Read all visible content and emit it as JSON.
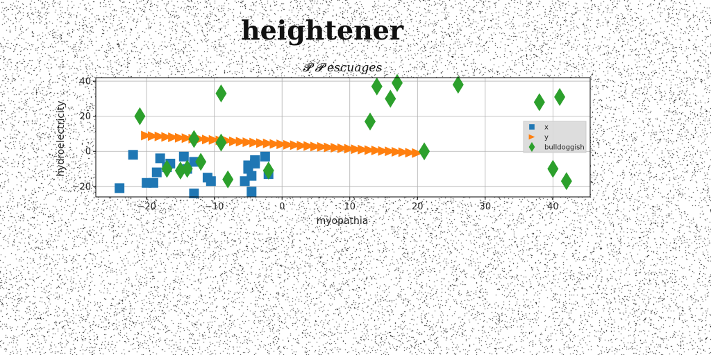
{
  "page_title": "heightener",
  "chart_data": {
    "type": "scatter",
    "title": "𝓟 𝓟 escuages",
    "xlabel": "myopathia",
    "ylabel": "hydroelectricity",
    "xlim": [
      -27.5,
      45.5
    ],
    "ylim": [
      -26,
      42
    ],
    "xticks": [
      -20,
      -10,
      0,
      10,
      20,
      30,
      40
    ],
    "yticks": [
      -20,
      0,
      20,
      40
    ],
    "grid": true,
    "legend_position": "right",
    "series": [
      {
        "name": "x",
        "marker": "square",
        "color": "#1f77b4",
        "points": [
          [
            -24,
            -21
          ],
          [
            -22,
            -2
          ],
          [
            -20,
            -18
          ],
          [
            -19,
            -18
          ],
          [
            -18.5,
            -12
          ],
          [
            -18,
            -4
          ],
          [
            -17,
            -9
          ],
          [
            -16.5,
            -7
          ],
          [
            -14.5,
            -3
          ],
          [
            -14,
            -10
          ],
          [
            -13,
            -24
          ],
          [
            -13,
            -6
          ],
          [
            -11,
            -15
          ],
          [
            -10.5,
            -17
          ],
          [
            -5.5,
            -17
          ],
          [
            -5,
            -10
          ],
          [
            -5,
            -8
          ],
          [
            -4.5,
            -14
          ],
          [
            -4.5,
            -23
          ],
          [
            -4,
            -7
          ],
          [
            -4,
            -5
          ],
          [
            -2.5,
            -3
          ],
          [
            -2,
            -13
          ]
        ]
      },
      {
        "name": "y",
        "marker": "triangle-right",
        "color": "#ff7f0e",
        "points": [
          [
            -20,
            9.0
          ],
          [
            -19,
            8.7
          ],
          [
            -18,
            8.5
          ],
          [
            -17,
            8.2
          ],
          [
            -16,
            8.0
          ],
          [
            -15,
            7.7
          ],
          [
            -14,
            7.5
          ],
          [
            -13,
            7.2
          ],
          [
            -12,
            7.0
          ],
          [
            -11,
            6.7
          ],
          [
            -10,
            6.5
          ],
          [
            -9,
            6.2
          ],
          [
            -8,
            6.0
          ],
          [
            -7,
            5.7
          ],
          [
            -6,
            5.5
          ],
          [
            -5,
            5.2
          ],
          [
            -4,
            5.0
          ],
          [
            -3,
            4.7
          ],
          [
            -2,
            4.5
          ],
          [
            -1,
            4.2
          ],
          [
            0,
            4.0
          ],
          [
            1,
            3.7
          ],
          [
            2,
            3.5
          ],
          [
            3,
            3.2
          ],
          [
            4,
            3.0
          ],
          [
            5,
            2.7
          ],
          [
            6,
            2.5
          ],
          [
            7,
            2.2
          ],
          [
            8,
            2.0
          ],
          [
            9,
            1.7
          ],
          [
            10,
            1.5
          ],
          [
            11,
            1.2
          ],
          [
            12,
            1.0
          ],
          [
            13,
            0.7
          ],
          [
            14,
            0.5
          ],
          [
            15,
            0.2
          ],
          [
            16,
            0.0
          ],
          [
            17,
            -0.3
          ],
          [
            18,
            -0.5
          ],
          [
            19,
            -0.8
          ],
          [
            20,
            -1.0
          ]
        ]
      },
      {
        "name": "bulldoggish",
        "marker": "thin-diamond",
        "color": "#2ca02c",
        "points": [
          [
            -21,
            20
          ],
          [
            -17,
            -10
          ],
          [
            -15,
            -11
          ],
          [
            -14,
            -10
          ],
          [
            -13,
            7
          ],
          [
            -12,
            -6
          ],
          [
            -9,
            33
          ],
          [
            -9,
            5
          ],
          [
            -8,
            -16
          ],
          [
            -2,
            -11
          ],
          [
            13,
            17
          ],
          [
            14,
            37
          ],
          [
            16,
            30
          ],
          [
            17,
            39
          ],
          [
            21,
            0
          ],
          [
            26,
            38
          ],
          [
            38,
            28
          ],
          [
            40,
            -10
          ],
          [
            41,
            31
          ],
          [
            42,
            -17
          ]
        ]
      }
    ]
  }
}
